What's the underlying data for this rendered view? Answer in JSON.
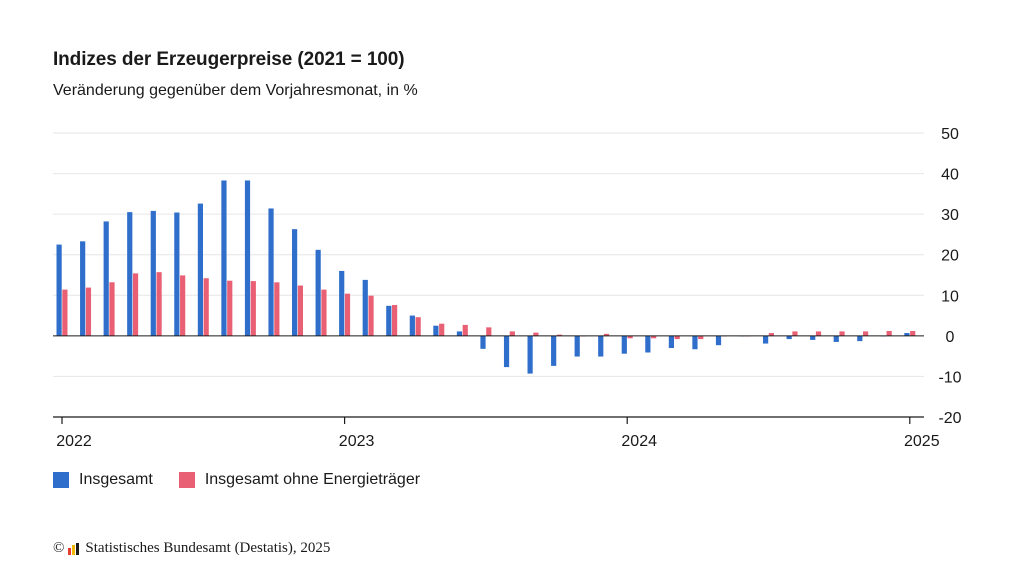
{
  "title": "Indizes der Erzeugerpreise (2021 = 100)",
  "subtitle": "Veränderung gegenüber dem Vorjahresmonat, in %",
  "footer": {
    "copyright_symbol": "©",
    "source": "Statistisches Bundesamt (Destatis), 2025",
    "logo_colors": [
      "#e63c2f",
      "#f2b705",
      "#1a1a1a"
    ]
  },
  "colors": {
    "insgesamt": "#2f6fcb",
    "ohne_energie": "#e96075",
    "gridline": "#e6e6e6",
    "zero_line": "#1a1a1a",
    "axis": "#1a1a1a"
  },
  "legend": [
    {
      "label": "Insgesamt",
      "color": "#2f6fcb"
    },
    {
      "label": "Insgesamt ohne Energieträger",
      "color": "#e96075"
    }
  ],
  "chart_data": {
    "type": "bar",
    "title": "Indizes der Erzeugerpreise (2021 = 100)",
    "subtitle": "Veränderung gegenüber dem Vorjahresmonat, in %",
    "y_axis_side": "right",
    "ylim": [
      -20,
      50
    ],
    "yticks": [
      50,
      40,
      30,
      20,
      10,
      0,
      -10,
      -20
    ],
    "xticks": [
      "2022",
      "2023",
      "2024",
      "2025"
    ],
    "categories": [
      "2022-01",
      "2022-02",
      "2022-03",
      "2022-04",
      "2022-05",
      "2022-06",
      "2022-07",
      "2022-08",
      "2022-09",
      "2022-10",
      "2022-11",
      "2022-12",
      "2023-01",
      "2023-02",
      "2023-03",
      "2023-04",
      "2023-05",
      "2023-06",
      "2023-07",
      "2023-08",
      "2023-09",
      "2023-10",
      "2023-11",
      "2023-12",
      "2024-01",
      "2024-02",
      "2024-03",
      "2024-04",
      "2024-05",
      "2024-06",
      "2024-07",
      "2024-08",
      "2024-09",
      "2024-10",
      "2024-11",
      "2024-12",
      "2025-01"
    ],
    "series": [
      {
        "name": "Insgesamt",
        "values": [
          22.5,
          23.3,
          28.2,
          30.5,
          30.8,
          30.4,
          32.6,
          38.3,
          38.3,
          31.4,
          26.3,
          21.2,
          16.0,
          13.8,
          7.4,
          5.0,
          2.5,
          1.1,
          -3.2,
          -7.7,
          -9.3,
          -7.4,
          -5.1,
          -5.1,
          -4.4,
          -4.1,
          -3.0,
          -3.3,
          -2.3,
          -0.1,
          -1.9,
          -0.8,
          -1.0,
          -1.5,
          -1.3,
          0.0,
          0.7
        ]
      },
      {
        "name": "Insgesamt ohne Energieträger",
        "values": [
          11.4,
          11.9,
          13.2,
          15.4,
          15.7,
          14.9,
          14.2,
          13.6,
          13.5,
          13.2,
          12.4,
          11.4,
          10.4,
          9.9,
          7.6,
          4.6,
          3.0,
          2.7,
          2.1,
          1.1,
          0.8,
          0.3,
          -0.1,
          0.5,
          -0.6,
          -0.6,
          -0.8,
          -0.8,
          -0.1,
          0.0,
          0.7,
          1.1,
          1.1,
          1.1,
          1.1,
          1.2,
          1.2
        ]
      }
    ]
  }
}
